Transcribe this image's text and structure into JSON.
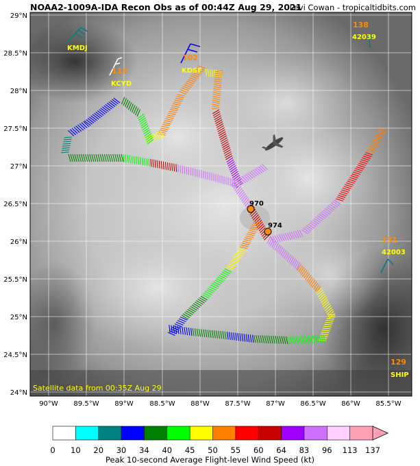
{
  "header": {
    "title": "NOAA2-1009A-IDA Recon Obs as of 00:44Z Aug 29, 2021",
    "credit": "Levi Cowan - tropicaltidbits.com"
  },
  "map": {
    "lat_ticks": [
      "29°N",
      "28.5°N",
      "28°N",
      "27.5°N",
      "27°N",
      "26.5°N",
      "26°N",
      "25.5°N",
      "25°N",
      "24.5°N",
      "24°N"
    ],
    "lon_ticks": [
      "90°W",
      "89.5°W",
      "89°W",
      "88.5°W",
      "88°W",
      "87.5°W",
      "87°W",
      "86.5°W",
      "86°W",
      "85.5°W"
    ],
    "satellite_note": "Satellite data from 00:35Z Aug 29",
    "pressure_obs": [
      "970",
      "974"
    ],
    "stations": [
      {
        "id": "KMDJ",
        "value": ""
      },
      {
        "id": "KCYD",
        "value": "113"
      },
      {
        "id": "KDSF",
        "value": "102"
      },
      {
        "id": "42039",
        "value": "138"
      },
      {
        "id": "42003",
        "value": "131"
      },
      {
        "id": "SHIP",
        "value": "129"
      }
    ]
  },
  "colorbar": {
    "title": "Peak 10-second Average Flight-level Wind Speed (kt)",
    "labels": [
      "0",
      "10",
      "20",
      "30",
      "34",
      "40",
      "45",
      "50",
      "55",
      "60",
      "64",
      "83",
      "96",
      "113",
      "137"
    ],
    "colors": [
      "#ffffff",
      "#00ffff",
      "#008080",
      "#0000ff",
      "#008000",
      "#00ff00",
      "#ffff00",
      "#ff8000",
      "#ff0000",
      "#c80000",
      "#a000ff",
      "#d070ff",
      "#ffd0ff",
      "#ffa0b4"
    ]
  },
  "colors": {
    "station_value": "#ff8c00",
    "station_id": "#ffff00",
    "sat_note": "#ffff00"
  }
}
